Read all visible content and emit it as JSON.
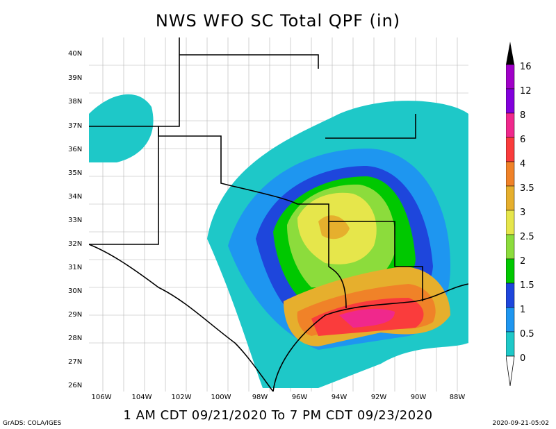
{
  "title": "NWS WFO SC Total QPF (in)",
  "period": "1 AM CDT 09/21/2020 To 7 PM CDT 09/23/2020",
  "credit": "GrADS: COLA/IGES",
  "timestamp": "2020-09-21-05:02",
  "lat_labels": [
    "40N",
    "39N",
    "38N",
    "37N",
    "36N",
    "35N",
    "34N",
    "33N",
    "32N",
    "31N",
    "30N",
    "29N",
    "28N",
    "27N",
    "26N"
  ],
  "lon_labels": [
    "106W",
    "104W",
    "102W",
    "100W",
    "98W",
    "96W",
    "94W",
    "92W",
    "90W",
    "88W"
  ],
  "legend": {
    "levels": [
      "0",
      "0.5",
      "1",
      "1.5",
      "2",
      "2.5",
      "3",
      "3.5",
      "4",
      "6",
      "8",
      "12",
      "16"
    ],
    "colors": [
      "#1ec8c8",
      "#1e96f0",
      "#1e46dc",
      "#00c800",
      "#8cdc3c",
      "#e6e64b",
      "#e6af2d",
      "#f08228",
      "#fa3c3c",
      "#f0288c",
      "#a000c8",
      "#8200dc",
      "#000000"
    ]
  }
}
